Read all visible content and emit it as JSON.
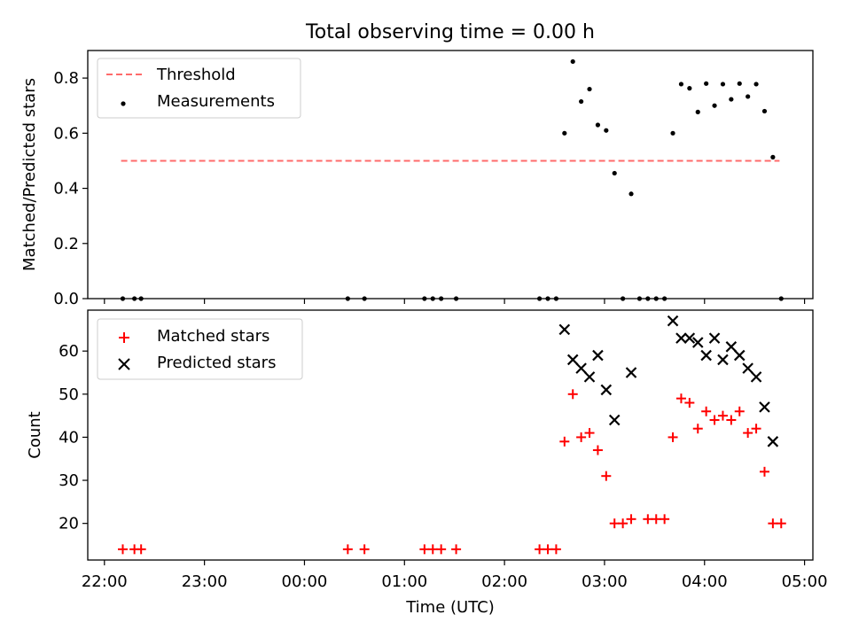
{
  "chart_data": [
    {
      "type": "scatter",
      "title": "Total observing time = 0.00 h",
      "xlabel": "",
      "ylabel": "Matched/Predicted stars",
      "xlim": [
        "21:50",
        "05:05"
      ],
      "ylim": [
        0,
        0.9
      ],
      "y_ticks": [
        "0.0",
        "0.2",
        "0.4",
        "0.6",
        "0.8"
      ],
      "legend": {
        "position": "top-left",
        "entries": [
          "Threshold",
          "Measurements"
        ]
      },
      "threshold": {
        "name": "Threshold",
        "value": 0.5,
        "x_start": "22:10",
        "x_end": "04:45",
        "color": "#ff6b6b"
      },
      "series": [
        {
          "name": "Measurements",
          "color": "#000000",
          "points": [
            [
              "22:11",
              0
            ],
            [
              "22:18",
              0
            ],
            [
              "22:22",
              0
            ],
            [
              "00:26",
              0
            ],
            [
              "00:36",
              0
            ],
            [
              "01:12",
              0
            ],
            [
              "01:17",
              0
            ],
            [
              "01:22",
              0
            ],
            [
              "01:31",
              0
            ],
            [
              "02:21",
              0
            ],
            [
              "02:26",
              0
            ],
            [
              "02:31",
              0
            ],
            [
              "02:36",
              0.6
            ],
            [
              "02:41",
              0.86
            ],
            [
              "02:46",
              0.715
            ],
            [
              "02:51",
              0.76
            ],
            [
              "02:56",
              0.63
            ],
            [
              "03:01",
              0.61
            ],
            [
              "03:06",
              0.455
            ],
            [
              "03:11",
              0
            ],
            [
              "03:16",
              0.38
            ],
            [
              "03:21",
              0
            ],
            [
              "03:26",
              0
            ],
            [
              "03:31",
              0
            ],
            [
              "03:36",
              0
            ],
            [
              "03:41",
              0.6
            ],
            [
              "03:46",
              0.778
            ],
            [
              "03:51",
              0.763
            ],
            [
              "03:56",
              0.677
            ],
            [
              "04:01",
              0.78
            ],
            [
              "04:06",
              0.7
            ],
            [
              "04:11",
              0.778
            ],
            [
              "04:16",
              0.723
            ],
            [
              "04:21",
              0.78
            ],
            [
              "04:26",
              0.733
            ],
            [
              "04:31",
              0.778
            ],
            [
              "04:36",
              0.68
            ],
            [
              "04:41",
              0.513
            ],
            [
              "04:46",
              0
            ]
          ]
        }
      ]
    },
    {
      "type": "scatter",
      "title": "",
      "xlabel": "Time (UTC)",
      "ylabel": "Count",
      "xlim": [
        "21:50",
        "05:05"
      ],
      "ylim": [
        11.5,
        69.5
      ],
      "x_ticks": [
        "22:00",
        "23:00",
        "00:00",
        "01:00",
        "02:00",
        "03:00",
        "04:00",
        "05:00"
      ],
      "y_ticks": [
        "20",
        "30",
        "40",
        "50",
        "60"
      ],
      "legend": {
        "position": "top-left",
        "entries": [
          "Matched stars",
          "Predicted stars"
        ]
      },
      "series": [
        {
          "name": "Matched stars",
          "marker": "plus",
          "color": "#ff0000",
          "points": [
            [
              "22:11",
              14
            ],
            [
              "22:18",
              14
            ],
            [
              "22:22",
              14
            ],
            [
              "00:26",
              14
            ],
            [
              "00:36",
              14
            ],
            [
              "01:12",
              14
            ],
            [
              "01:17",
              14
            ],
            [
              "01:22",
              14
            ],
            [
              "01:31",
              14
            ],
            [
              "02:21",
              14
            ],
            [
              "02:26",
              14
            ],
            [
              "02:31",
              14
            ],
            [
              "02:36",
              39
            ],
            [
              "02:41",
              50
            ],
            [
              "02:46",
              40
            ],
            [
              "02:51",
              41
            ],
            [
              "02:56",
              37
            ],
            [
              "03:01",
              31
            ],
            [
              "03:06",
              20
            ],
            [
              "03:11",
              20
            ],
            [
              "03:16",
              21
            ],
            [
              "03:26",
              21
            ],
            [
              "03:31",
              21
            ],
            [
              "03:36",
              21
            ],
            [
              "03:41",
              40
            ],
            [
              "03:46",
              49
            ],
            [
              "03:51",
              48
            ],
            [
              "03:56",
              42
            ],
            [
              "04:01",
              46
            ],
            [
              "04:06",
              44
            ],
            [
              "04:11",
              45
            ],
            [
              "04:16",
              44
            ],
            [
              "04:21",
              46
            ],
            [
              "04:26",
              41
            ],
            [
              "04:31",
              42
            ],
            [
              "04:36",
              32
            ],
            [
              "04:41",
              20
            ],
            [
              "04:46",
              20
            ]
          ]
        },
        {
          "name": "Predicted stars",
          "marker": "x",
          "color": "#000000",
          "points": [
            [
              "02:36",
              65
            ],
            [
              "02:41",
              58
            ],
            [
              "02:46",
              56
            ],
            [
              "02:51",
              54
            ],
            [
              "02:56",
              59
            ],
            [
              "03:01",
              51
            ],
            [
              "03:06",
              44
            ],
            [
              "03:16",
              55
            ],
            [
              "03:41",
              67
            ],
            [
              "03:46",
              63
            ],
            [
              "03:51",
              63
            ],
            [
              "03:56",
              62
            ],
            [
              "04:01",
              59
            ],
            [
              "04:06",
              63
            ],
            [
              "04:11",
              58
            ],
            [
              "04:16",
              61
            ],
            [
              "04:21",
              59
            ],
            [
              "04:26",
              56
            ],
            [
              "04:31",
              54
            ],
            [
              "04:36",
              47
            ],
            [
              "04:41",
              39
            ]
          ]
        }
      ]
    }
  ]
}
